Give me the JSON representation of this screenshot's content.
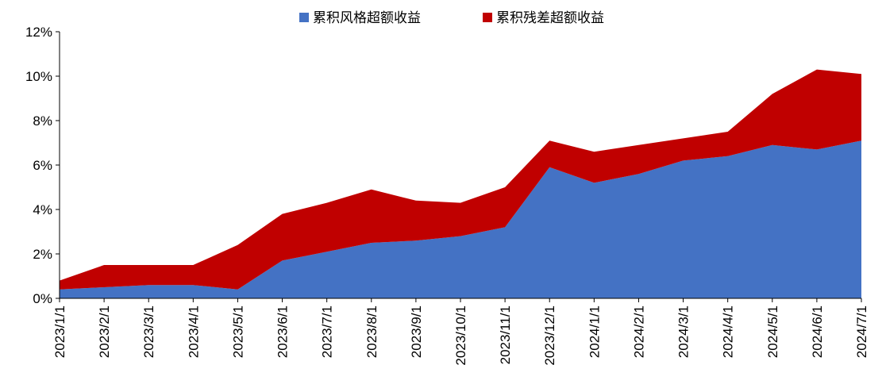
{
  "chart_data": {
    "type": "area",
    "stacked": true,
    "categories": [
      "2023/1/1",
      "2023/2/1",
      "2023/3/1",
      "2023/4/1",
      "2023/5/1",
      "2023/6/1",
      "2023/7/1",
      "2023/8/1",
      "2023/9/1",
      "2023/10/1",
      "2023/11/1",
      "2023/12/1",
      "2024/1/1",
      "2024/2/1",
      "2024/3/1",
      "2024/4/1",
      "2024/5/1",
      "2024/6/1",
      "2024/7/1"
    ],
    "series": [
      {
        "name": "累积风格超额收益",
        "color": "#4472C4",
        "values": [
          0.4,
          0.5,
          0.6,
          0.6,
          0.4,
          1.7,
          2.1,
          2.5,
          2.6,
          2.8,
          3.2,
          5.9,
          5.2,
          5.6,
          6.2,
          6.4,
          6.9,
          6.7,
          7.1
        ]
      },
      {
        "name": "累积残差超额收益",
        "color": "#C00000",
        "values": [
          0.4,
          1.0,
          0.9,
          0.9,
          2.0,
          2.1,
          2.2,
          2.4,
          1.8,
          1.5,
          1.8,
          1.2,
          1.4,
          1.3,
          1.0,
          1.1,
          2.3,
          3.6,
          3.0
        ]
      }
    ],
    "ylim": [
      0,
      12
    ],
    "yticks": [
      "0%",
      "2%",
      "4%",
      "6%",
      "8%",
      "10%",
      "12%"
    ],
    "ytick_values": [
      0,
      2,
      4,
      6,
      8,
      10,
      12
    ],
    "grid": false,
    "legend_position": "top"
  }
}
